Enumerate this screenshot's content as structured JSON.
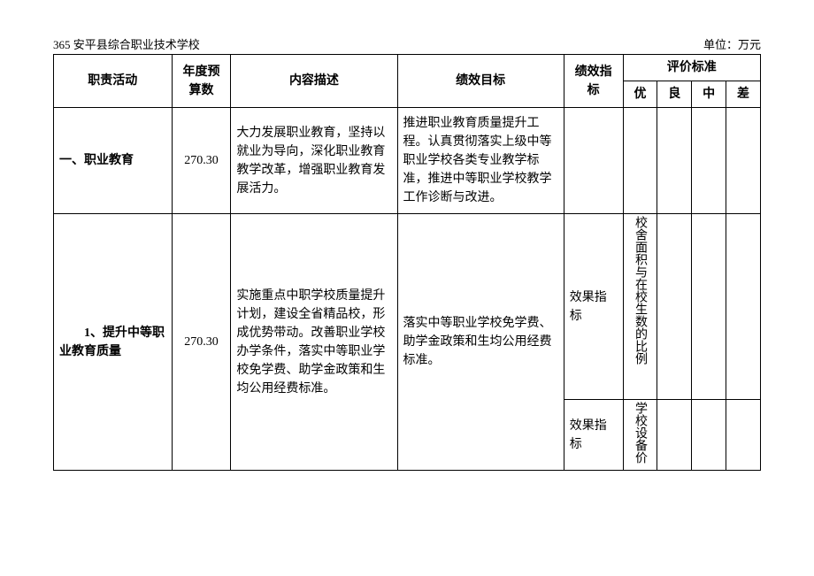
{
  "header": {
    "left": "365 安平县综合职业技术学校",
    "right": "单位：万元"
  },
  "columns": {
    "activity": "职责活动",
    "budget": "年度预算数",
    "desc": "内容描述",
    "goal": "绩效目标",
    "index": "绩效指标",
    "eval_group": "评价标准",
    "eval_a": "优",
    "eval_b": "良",
    "eval_c": "中",
    "eval_d": "差"
  },
  "rows": {
    "r1": {
      "activity": "一、职业教育",
      "budget": "270.30",
      "desc": "大力发展职业教育，坚持以就业为导向，深化职业教育教学改革，增强职业教育发展活力。",
      "goal": "推进职业教育质量提升工程。认真贯彻落实上级中等职业学校各类专业教学标准，推进中等职业学校教学工作诊断与改进。"
    },
    "r2": {
      "activity": "　　1、提升中等职业教育质量",
      "budget": "270.30",
      "desc": "实施重点中职学校质量提升计划，建设全省精品校，形成优势带动。改善职业学校办学条件，落实中等职业学校免学费、助学金政策和生均公用经费标准。",
      "goal": "落实中等职业学校免学费、助学金政策和生均公用经费标准。",
      "index1": "效果指标",
      "eval_a1": "校舍面积与在校生数的比例",
      "index2": "效果指标",
      "eval_a2": "学校设备价"
    }
  }
}
